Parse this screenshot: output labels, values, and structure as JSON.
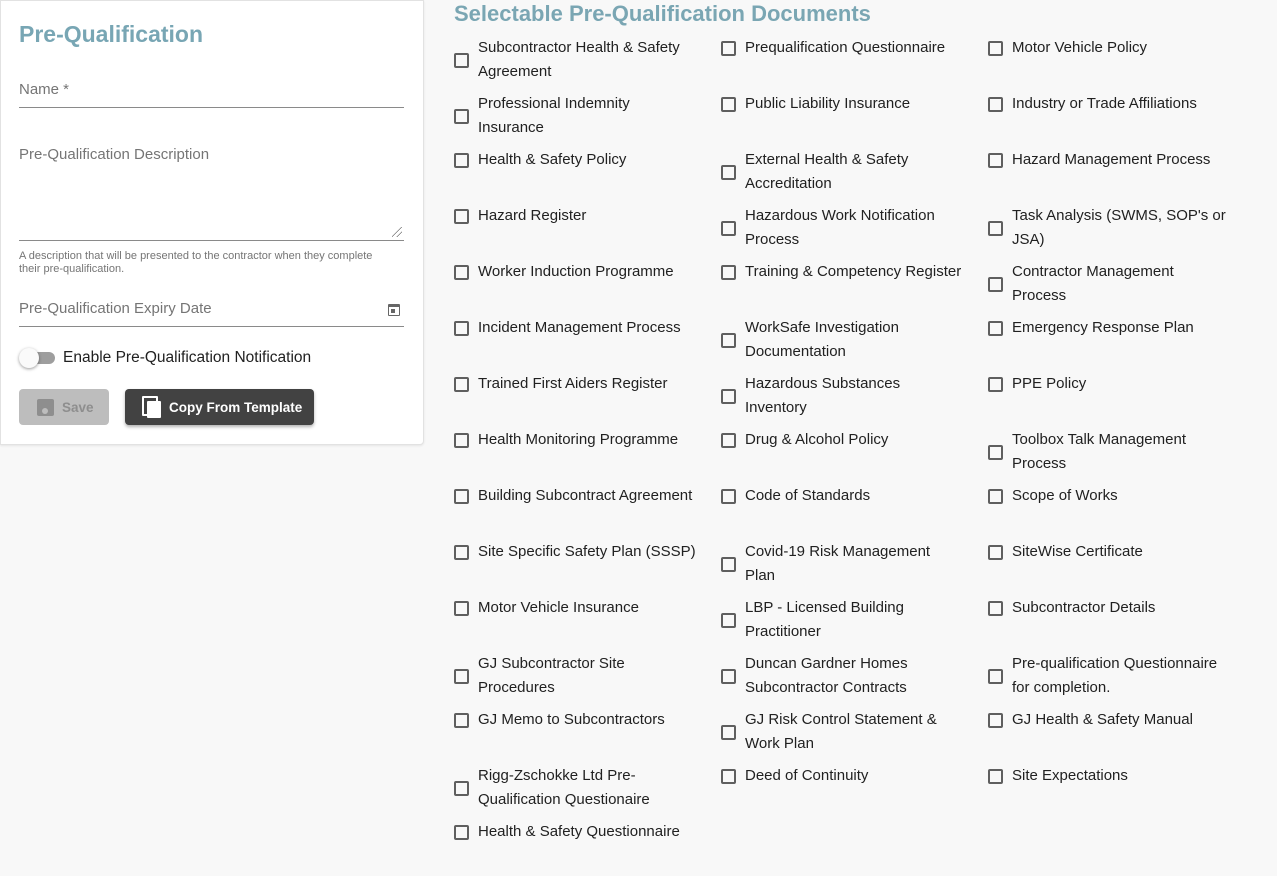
{
  "form": {
    "title": "Pre-Qualification",
    "name_label": "Name *",
    "description_label": "Pre-Qualification Description",
    "description_hint": "A description that will be presented to the contractor when they complete their pre-qualification.",
    "expiry_label": "Pre-Qualification Expiry Date",
    "notification_label": "Enable Pre-Qualification Notification",
    "notification_enabled": false,
    "save_label": "Save",
    "copy_label": "Copy From Template"
  },
  "documents": {
    "title": "Selectable Pre-Qualification Documents",
    "items": [
      "Subcontractor Health & Safety Agreement",
      "Prequalification Questionnaire",
      "Motor Vehicle Policy",
      "Professional Indemnity Insurance",
      "Public Liability Insurance",
      "Industry or Trade Affiliations",
      "Health & Safety Policy",
      "External Health & Safety Accreditation",
      "Hazard Management Process",
      "Hazard Register",
      "Hazardous Work Notification Process",
      "Task Analysis (SWMS, SOP's or JSA)",
      "Worker Induction Programme",
      "Training & Competency Register",
      "Contractor Management Process",
      "Incident Management Process",
      "WorkSafe Investigation Documentation",
      "Emergency Response Plan",
      "Trained First Aiders Register",
      "Hazardous Substances Inventory",
      "PPE Policy",
      "Health Monitoring Programme",
      "Drug & Alcohol Policy",
      "Toolbox Talk Management Process",
      "Building Subcontract Agreement",
      "Code of Standards",
      "Scope of Works",
      "Site Specific Safety Plan (SSSP)",
      "Covid-19 Risk Management Plan",
      "SiteWise Certificate",
      "Motor Vehicle Insurance",
      "LBP - Licensed Building Practitioner",
      "Subcontractor Details",
      "GJ Subcontractor Site Procedures",
      "Duncan Gardner Homes Subcontractor Contracts",
      "Pre-qualification Questionnaire for completion.",
      "GJ Memo to Subcontractors",
      "GJ Risk Control Statement & Work Plan",
      "GJ Health & Safety Manual",
      "Rigg-Zschokke Ltd Pre-Qualification Questionaire",
      "Deed of Continuity",
      "Site Expectations",
      "Health & Safety Questionnaire"
    ]
  }
}
